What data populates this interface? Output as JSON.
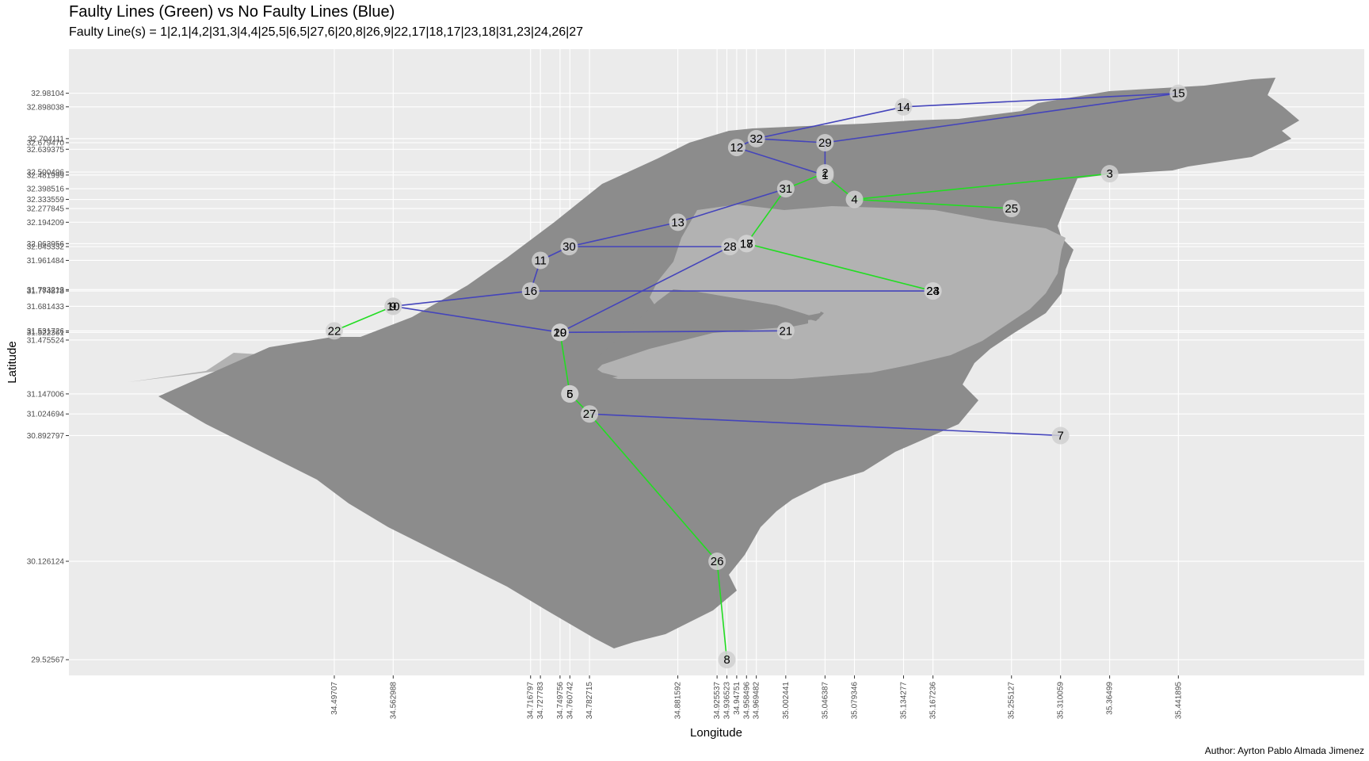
{
  "title": "Faulty Lines (Green) vs No Faulty Lines (Blue)",
  "subtitle": "Faulty Line(s) = 1|2,1|4,2|31,3|4,4|25,5|6,5|27,6|20,8|26,9|22,17|18,17|23,18|31,23|24,26|27",
  "caption": "Author: Ayrton Pablo Almada Jimenez",
  "colors": {
    "faulty": "#22dd22",
    "ok": "#4444bb",
    "panel": "#ebebeb",
    "land_dark": "#8c8c8c",
    "land_light": "#b2b2b2",
    "node": "#d0d0d0"
  },
  "chart_data": {
    "type": "network-map",
    "xlabel": "Longitude",
    "ylabel": "Latitude",
    "xlim": [
      34.2,
      35.65
    ],
    "ylim": [
      29.43,
      33.25
    ],
    "x_ticks": [
      "34.49707",
      "34.562988",
      "34.716797",
      "34.727783",
      "34.749756",
      "34.760742",
      "34.782715",
      "34.881592",
      "34.925537",
      "34.936523",
      "34.94751",
      "34.958496",
      "34.969482",
      "35.002441",
      "35.046387",
      "35.079346",
      "35.134277",
      "35.167236",
      "35.255127",
      "35.310059",
      "35.36499",
      "35.441895"
    ],
    "y_ticks": [
      "29.52567",
      "30.126124",
      "30.892797",
      "31.024694",
      "31.147006",
      "31.475524",
      "31.522361",
      "31.531726",
      "31.681433",
      "31.774878",
      "31.783213",
      "31.961484",
      "32.045332",
      "32.063956",
      "32.194209",
      "32.277845",
      "32.333559",
      "32.398516",
      "32.481999",
      "32.500496",
      "32.639375",
      "32.679470",
      "32.704111",
      "32.898038",
      "32.98104"
    ],
    "nodes": [
      {
        "id": "1",
        "lon": 35.046387,
        "lat": 32.48
      },
      {
        "id": "2",
        "lon": 35.046387,
        "lat": 32.495
      },
      {
        "id": "3",
        "lon": 35.36499,
        "lat": 32.49
      },
      {
        "id": "4",
        "lon": 35.079346,
        "lat": 32.333559
      },
      {
        "id": "5",
        "lon": 34.760742,
        "lat": 31.147006
      },
      {
        "id": "6",
        "lon": 34.760742,
        "lat": 31.147006
      },
      {
        "id": "7",
        "lon": 35.310059,
        "lat": 30.892797
      },
      {
        "id": "8",
        "lon": 34.936523,
        "lat": 29.52567
      },
      {
        "id": "9",
        "lon": 34.562988,
        "lat": 31.681433
      },
      {
        "id": "10",
        "lon": 34.562988,
        "lat": 31.681433
      },
      {
        "id": "11",
        "lon": 34.727783,
        "lat": 31.961484
      },
      {
        "id": "12",
        "lon": 34.94751,
        "lat": 32.65
      },
      {
        "id": "13",
        "lon": 34.881592,
        "lat": 32.194209
      },
      {
        "id": "14",
        "lon": 35.134277,
        "lat": 32.898038
      },
      {
        "id": "15",
        "lon": 35.441895,
        "lat": 32.98104
      },
      {
        "id": "16",
        "lon": 34.716797,
        "lat": 31.774878
      },
      {
        "id": "17",
        "lon": 34.958496,
        "lat": 32.063956
      },
      {
        "id": "18",
        "lon": 34.958496,
        "lat": 32.063956
      },
      {
        "id": "19",
        "lon": 34.749756,
        "lat": 31.522361
      },
      {
        "id": "20",
        "lon": 34.749756,
        "lat": 31.522361
      },
      {
        "id": "21",
        "lon": 35.002441,
        "lat": 31.531726
      },
      {
        "id": "22",
        "lon": 34.49707,
        "lat": 31.531726
      },
      {
        "id": "23",
        "lon": 35.167236,
        "lat": 31.774878
      },
      {
        "id": "24",
        "lon": 35.167236,
        "lat": 31.774878
      },
      {
        "id": "25",
        "lon": 35.255127,
        "lat": 32.277845
      },
      {
        "id": "26",
        "lon": 34.925537,
        "lat": 30.126124
      },
      {
        "id": "27",
        "lon": 34.782715,
        "lat": 31.024694
      },
      {
        "id": "28",
        "lon": 34.94,
        "lat": 32.045332
      },
      {
        "id": "29",
        "lon": 35.046387,
        "lat": 32.67947
      },
      {
        "id": "30",
        "lon": 34.76,
        "lat": 32.045332
      },
      {
        "id": "31",
        "lon": 35.002441,
        "lat": 32.398516
      },
      {
        "id": "32",
        "lon": 34.969482,
        "lat": 32.704111
      }
    ],
    "faulty_edges": [
      [
        "1",
        "2"
      ],
      [
        "1",
        "4"
      ],
      [
        "2",
        "31"
      ],
      [
        "3",
        "4"
      ],
      [
        "4",
        "25"
      ],
      [
        "5",
        "6"
      ],
      [
        "5",
        "27"
      ],
      [
        "6",
        "20"
      ],
      [
        "8",
        "26"
      ],
      [
        "9",
        "22"
      ],
      [
        "17",
        "18"
      ],
      [
        "17",
        "23"
      ],
      [
        "18",
        "31"
      ],
      [
        "23",
        "24"
      ],
      [
        "26",
        "27"
      ]
    ],
    "ok_edges": [
      [
        "15",
        "14"
      ],
      [
        "14",
        "32"
      ],
      [
        "15",
        "29"
      ],
      [
        "29",
        "32"
      ],
      [
        "32",
        "12"
      ],
      [
        "29",
        "1"
      ],
      [
        "12",
        "1"
      ],
      [
        "31",
        "13"
      ],
      [
        "13",
        "30"
      ],
      [
        "30",
        "11"
      ],
      [
        "11",
        "16"
      ],
      [
        "30",
        "28"
      ],
      [
        "16",
        "24"
      ],
      [
        "16",
        "10"
      ],
      [
        "9",
        "10"
      ],
      [
        "10",
        "19"
      ],
      [
        "19",
        "20"
      ],
      [
        "19",
        "21"
      ],
      [
        "19",
        "28"
      ],
      [
        "27",
        "7"
      ]
    ]
  }
}
